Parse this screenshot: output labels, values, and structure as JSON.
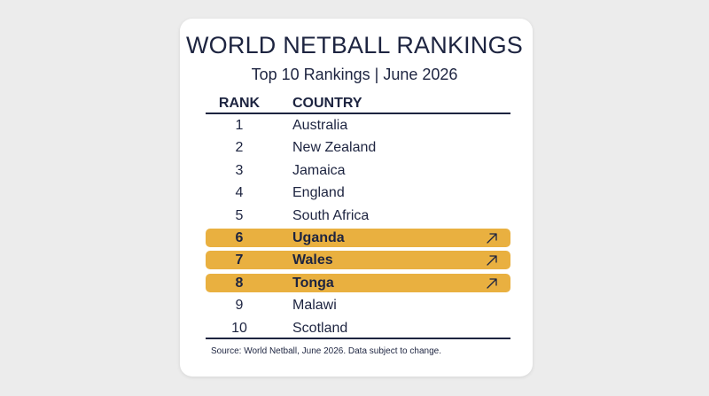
{
  "title": "WORLD NETBALL RANKINGS",
  "subtitle": "Top 10 Rankings | June 2026",
  "headers": {
    "rank": "RANK",
    "country": "COUNTRY"
  },
  "rows": [
    {
      "rank": "1",
      "country": "Australia",
      "highlight": false
    },
    {
      "rank": "2",
      "country": "New Zealand",
      "highlight": false
    },
    {
      "rank": "3",
      "country": "Jamaica",
      "highlight": false
    },
    {
      "rank": "4",
      "country": "England",
      "highlight": false
    },
    {
      "rank": "5",
      "country": "South Africa",
      "highlight": false
    },
    {
      "rank": "6",
      "country": "Uganda",
      "highlight": true,
      "icon": "arrow-up-right-icon"
    },
    {
      "rank": "7",
      "country": "Wales",
      "highlight": true,
      "icon": "arrow-up-right-icon"
    },
    {
      "rank": "8",
      "country": "Tonga",
      "highlight": true,
      "icon": "arrow-up-right-icon"
    },
    {
      "rank": "9",
      "country": "Malawi",
      "highlight": false
    },
    {
      "rank": "10",
      "country": "Scotland",
      "highlight": false
    }
  ],
  "source": "Source: World Netball, June 2026. Data subject to change.",
  "colors": {
    "text": "#1d2440",
    "highlight": "#e9b040",
    "background": "#ececec",
    "card": "#ffffff"
  }
}
